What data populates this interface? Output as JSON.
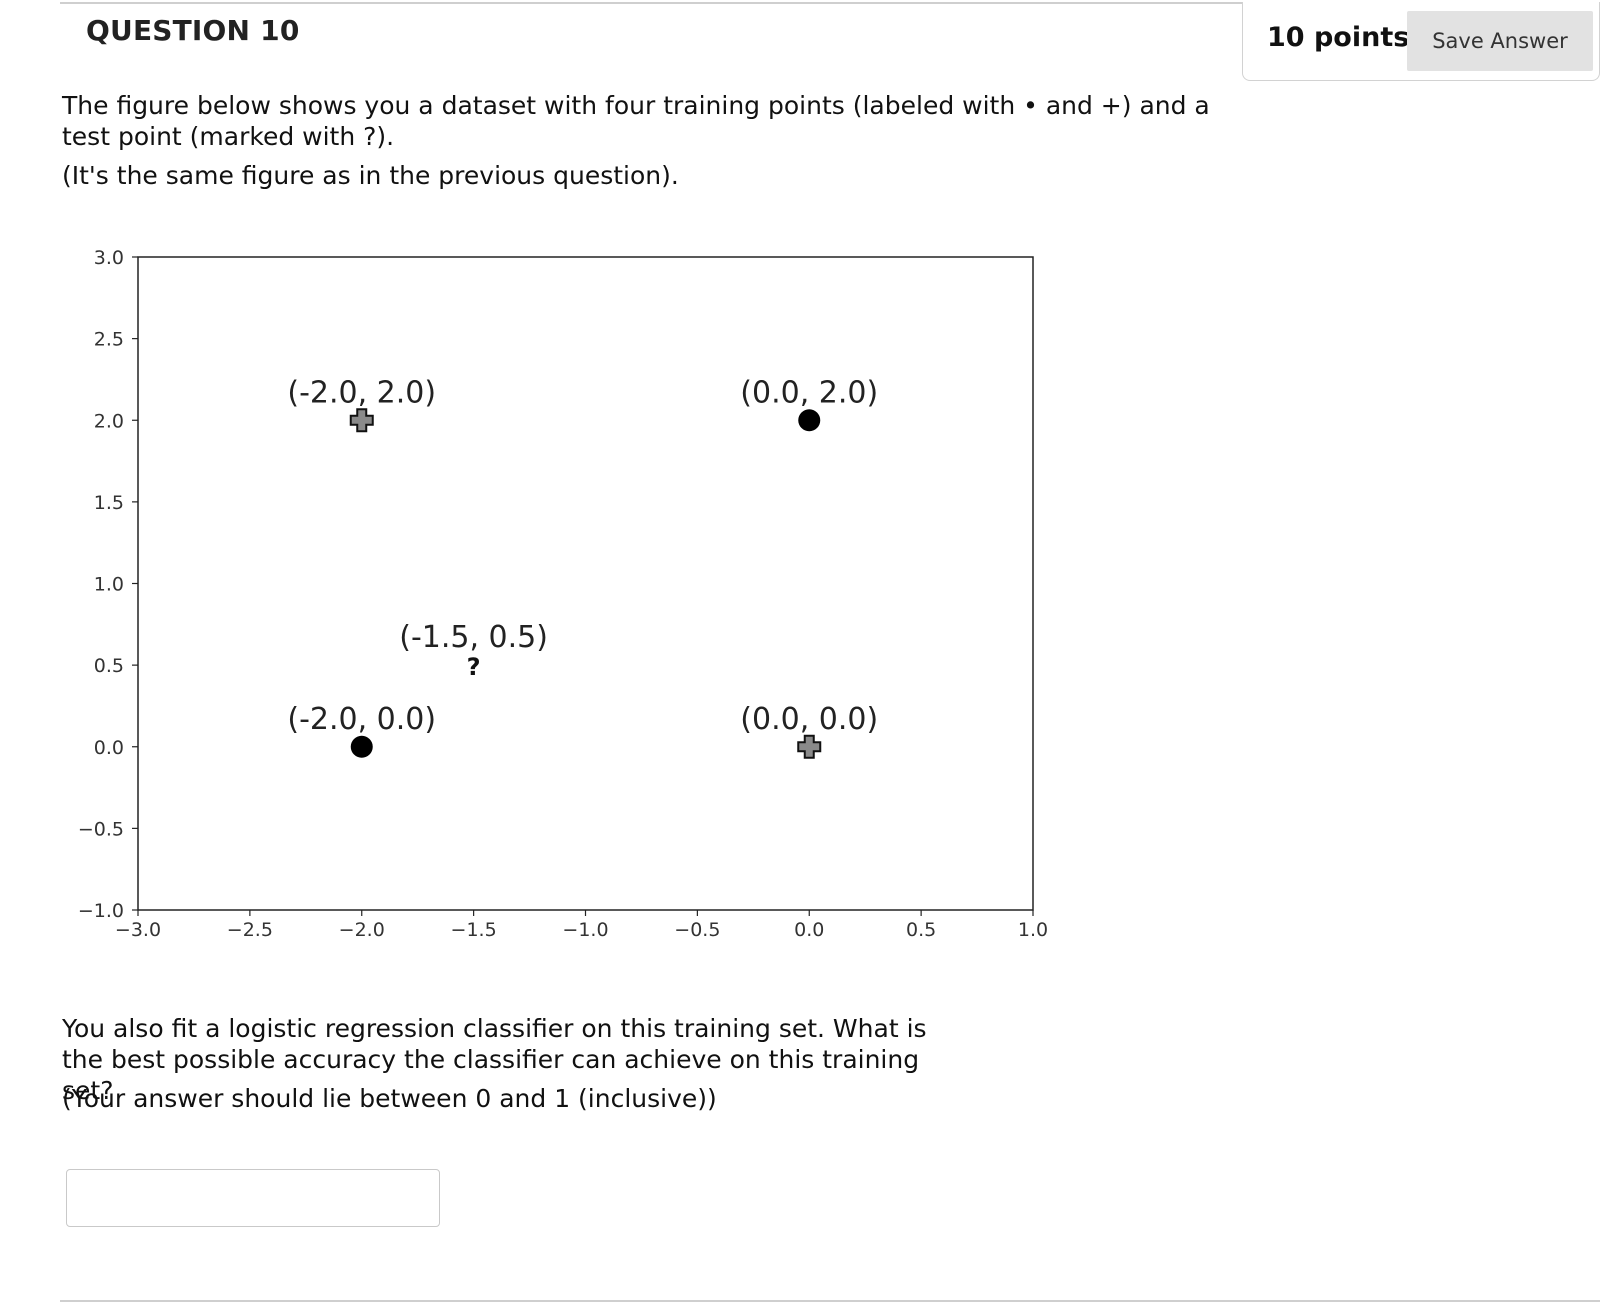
{
  "question": {
    "title": "QUESTION 10",
    "points": "10 points",
    "save_label": "Save Answer",
    "prompt_line1": "The figure below shows you a dataset with four training points (labeled  with • and +) and a test point (marked with ?).",
    "prompt_line2": "(It's the same figure as in the previous question).",
    "prompt_line3": "You also fit a logistic regression classifier on this training set. What is the best possible accuracy the classifier can achieve on this training set?",
    "prompt_line4": "(Your answer should lie between 0 and 1 (inclusive))",
    "answer_value": "",
    "answer_placeholder": ""
  },
  "chart_data": {
    "type": "scatter",
    "title": "",
    "xlabel": "",
    "ylabel": "",
    "xlim": [
      -3.0,
      1.0
    ],
    "ylim": [
      -1.0,
      3.0
    ],
    "xticks": [
      "−3.0",
      "−2.5",
      "−2.0",
      "−1.5",
      "−1.0",
      "−0.5",
      "0.0",
      "0.5",
      "1.0"
    ],
    "yticks": [
      "3.0",
      "2.5",
      "2.0",
      "1.5",
      "1.0",
      "0.5",
      "0.0",
      "−0.5",
      "−1.0"
    ],
    "grid": false,
    "points": [
      {
        "x": -2.0,
        "y": 2.0,
        "marker": "plus",
        "label": "(-2.0, 2.0)"
      },
      {
        "x": 0.0,
        "y": 2.0,
        "marker": "dot",
        "label": "(0.0, 2.0)"
      },
      {
        "x": -2.0,
        "y": 0.0,
        "marker": "dot",
        "label": "(-2.0, 0.0)"
      },
      {
        "x": 0.0,
        "y": 0.0,
        "marker": "plus",
        "label": "(0.0, 0.0)"
      },
      {
        "x": -1.5,
        "y": 0.5,
        "marker": "question",
        "label": "(-1.5, 0.5)"
      }
    ]
  }
}
